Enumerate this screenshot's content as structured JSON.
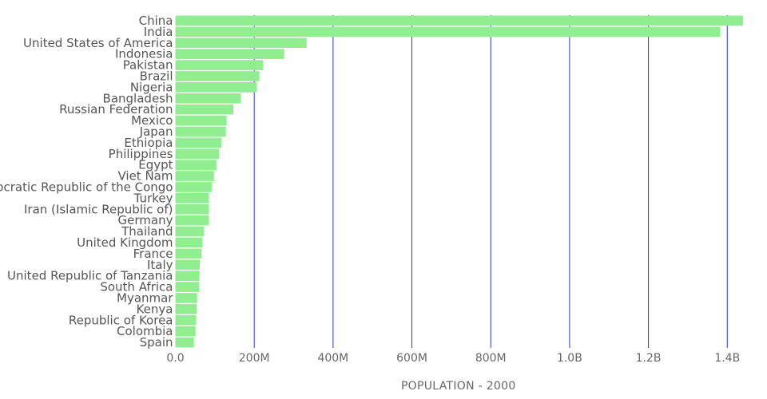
{
  "chart_data": {
    "type": "bar",
    "orientation": "horizontal",
    "title": "",
    "xlabel": "POPULATION - 2000",
    "ylabel": "",
    "xlim": [
      0,
      1440000000
    ],
    "x_ticks": [
      {
        "value": 0,
        "label": "0.0"
      },
      {
        "value": 200000000,
        "label": "200M"
      },
      {
        "value": 400000000,
        "label": "400M"
      },
      {
        "value": 600000000,
        "label": "600M"
      },
      {
        "value": 800000000,
        "label": "800M"
      },
      {
        "value": 1000000000,
        "label": "1.0B"
      },
      {
        "value": 1200000000,
        "label": "1.2B"
      },
      {
        "value": 1400000000,
        "label": "1.4B"
      }
    ],
    "grid": "vertical lines",
    "colors": {
      "bar": "#90ee90",
      "grid": "#3333cc",
      "text": "#555555"
    },
    "categories": [
      "China",
      "India",
      "United States of America",
      "Indonesia",
      "Pakistan",
      "Brazil",
      "Nigeria",
      "Bangladesh",
      "Russian Federation",
      "Mexico",
      "Japan",
      "Ethiopia",
      "Philippines",
      "Egypt",
      "Viet Nam",
      "Democratic Republic of the Congo",
      "Turkey",
      "Iran (Islamic Republic of)",
      "Germany",
      "Thailand",
      "United Kingdom",
      "France",
      "Italy",
      "United Republic of Tanzania",
      "South Africa",
      "Myanmar",
      "Kenya",
      "Republic of Korea",
      "Colombia",
      "Spain"
    ],
    "values": [
      1440000000,
      1382000000,
      333000000,
      276000000,
      222000000,
      213000000,
      206000000,
      166000000,
      147000000,
      130000000,
      128000000,
      117000000,
      111000000,
      104000000,
      98000000,
      92000000,
      85000000,
      85000000,
      85000000,
      72000000,
      68000000,
      66000000,
      62000000,
      61000000,
      60000000,
      55000000,
      54000000,
      52000000,
      51000000,
      47000000
    ]
  }
}
